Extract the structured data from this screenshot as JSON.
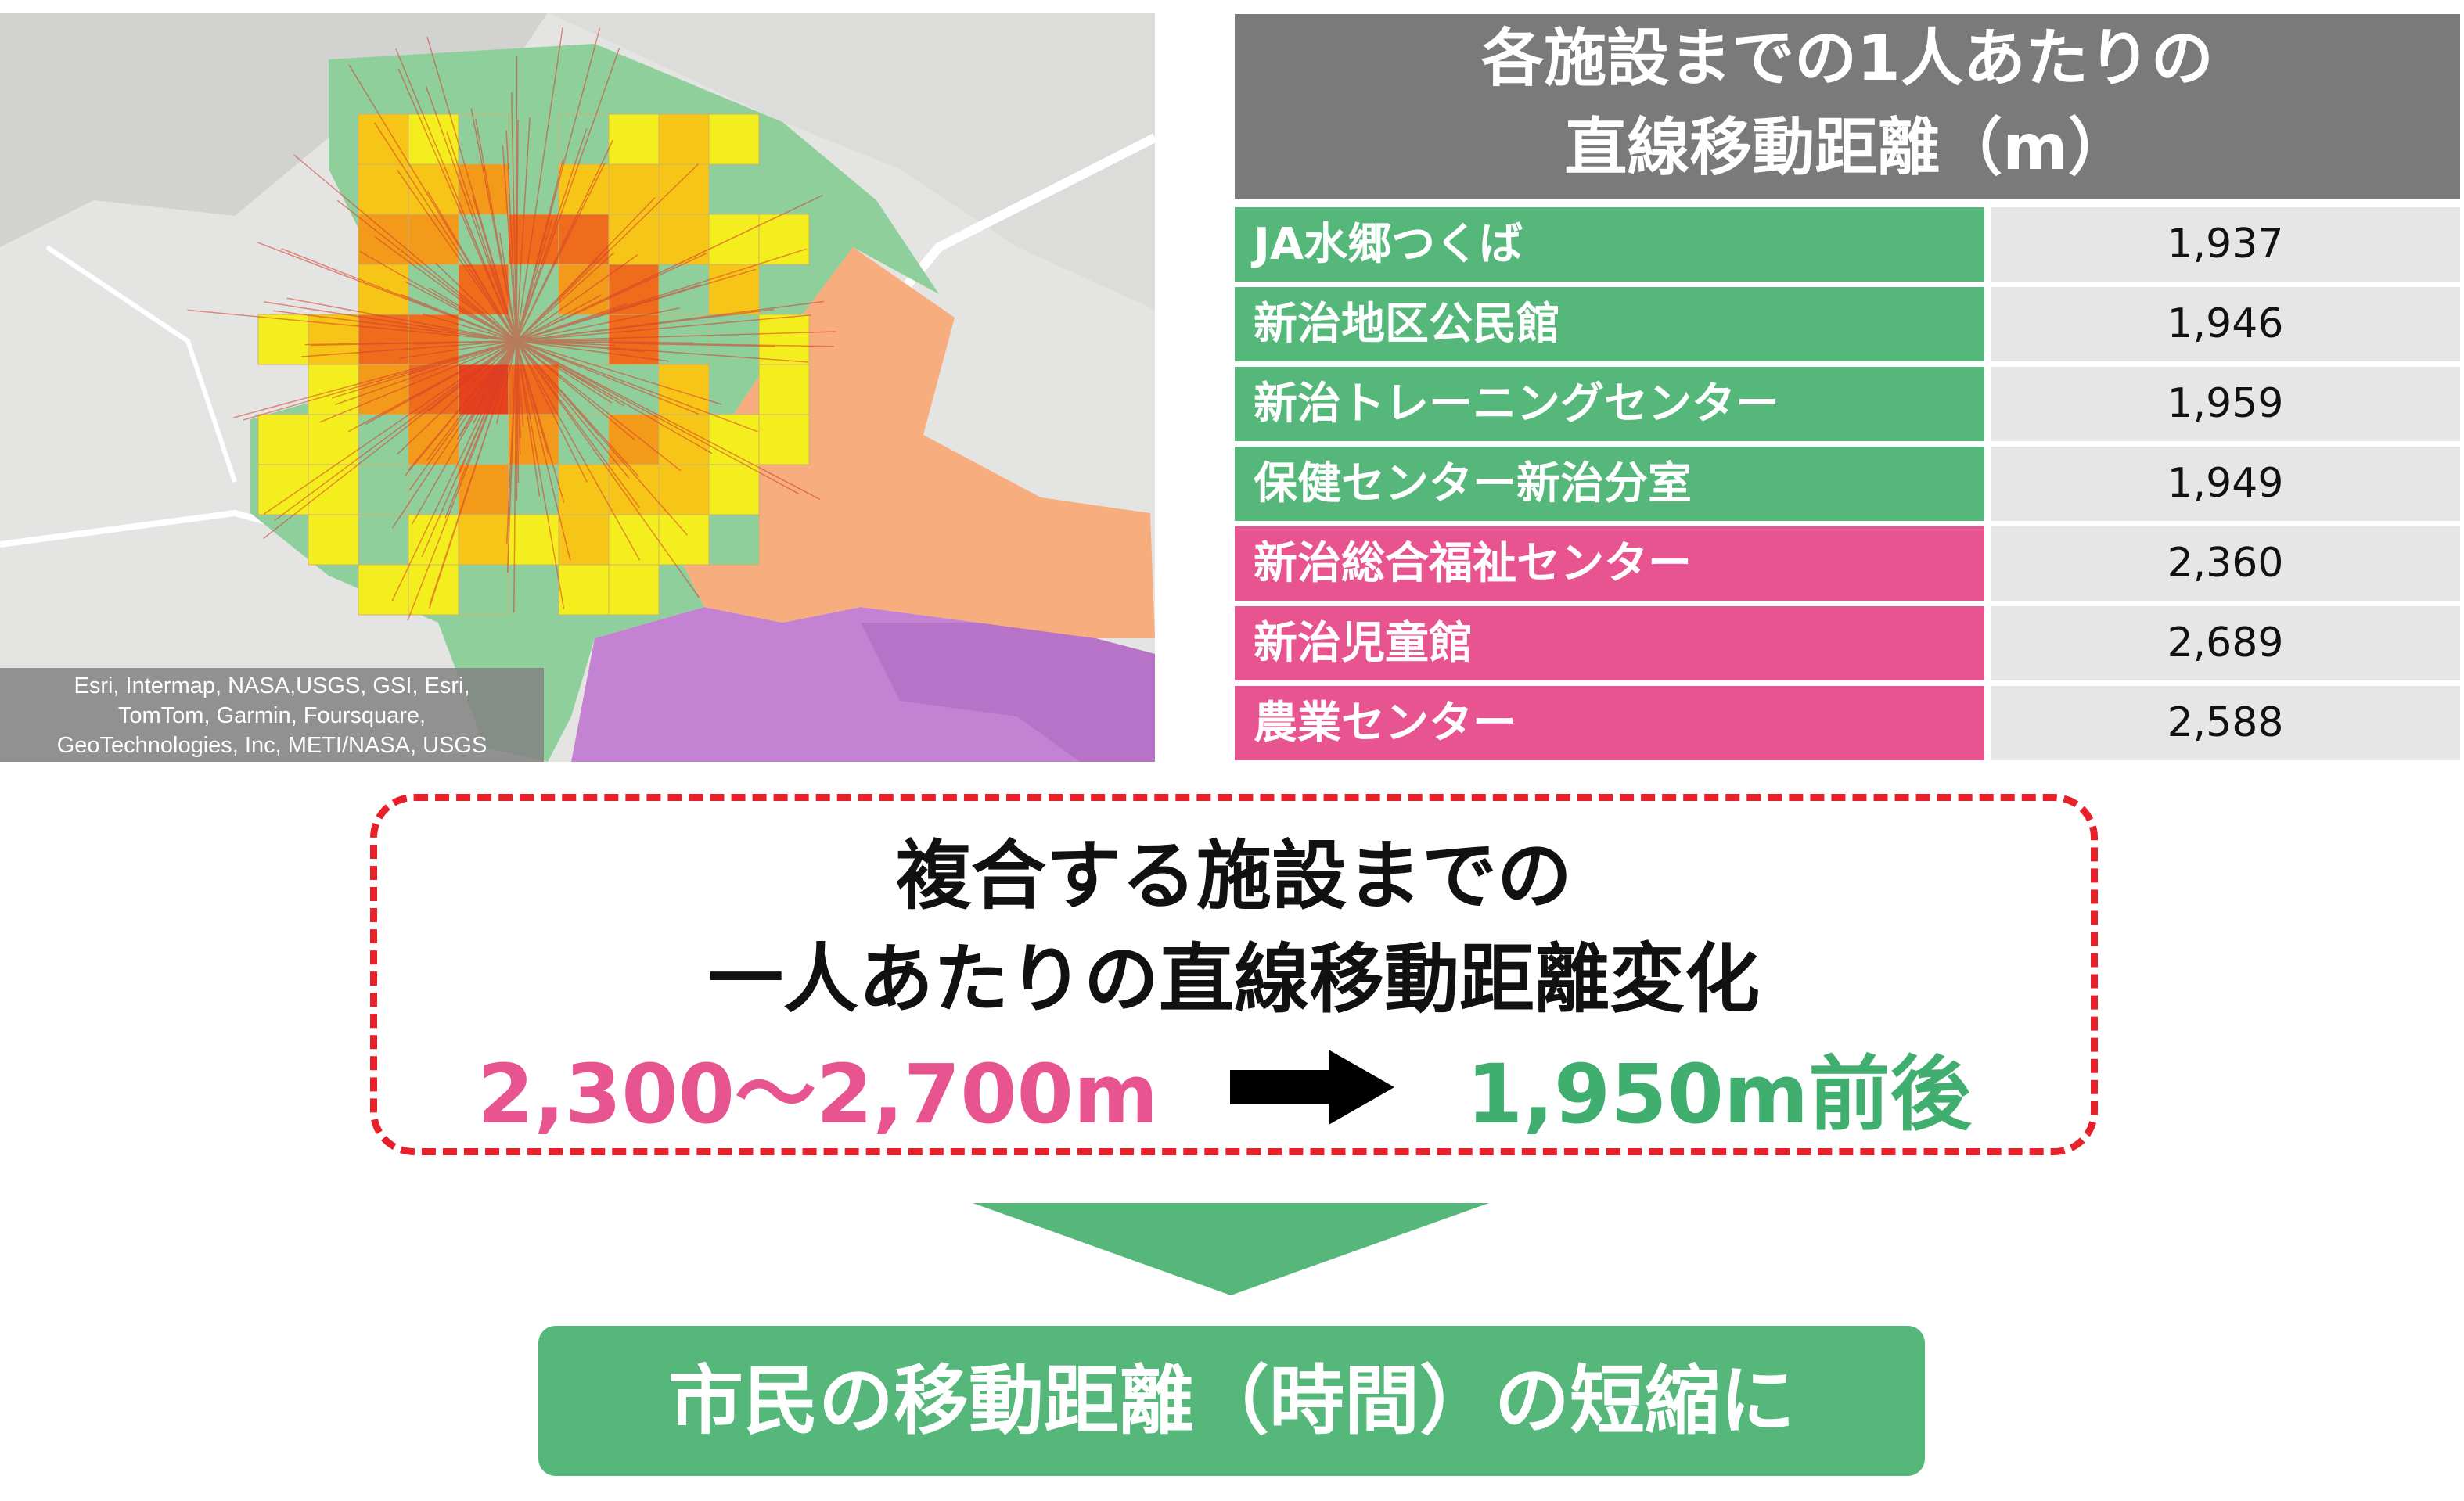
{
  "map": {
    "attribution": [
      "Esri, Intermap, NASA,USGS, GSI, Esri,",
      "TomTom, Garmin, Foursquare,",
      "GeoTechnologies, Inc, METI/NASA, USGS"
    ]
  },
  "table": {
    "header": [
      "各施設までの1人あたりの",
      "直線移動距離（m）"
    ],
    "rows": [
      {
        "label": "JA水郷つくば",
        "value": "1,937",
        "color": "#55b77a"
      },
      {
        "label": "新治地区公民館",
        "value": "1,946",
        "color": "#55b77a"
      },
      {
        "label": "新治トレーニングセンター",
        "value": "1,959",
        "color": "#55b77a"
      },
      {
        "label": "保健センター新治分室",
        "value": "1,949",
        "color": "#55b77a"
      },
      {
        "label": "新治総合福祉センター",
        "value": "2,360",
        "color": "#e8548f"
      },
      {
        "label": "新治児童館",
        "value": "2,689",
        "color": "#e8548f"
      },
      {
        "label": "農業センター",
        "value": "2,588",
        "color": "#e8548f"
      }
    ]
  },
  "callout": {
    "line1": "複合する施設までの",
    "line2": "一人あたりの直線移動距離変化",
    "from_value": "2,300～2,700m",
    "to_value": "1,950m前後"
  },
  "result": "市民の移動距離（時間）の短縮に",
  "colors": {
    "green": "#55b77a",
    "pink": "#e8548f",
    "dash_red": "#e8202a",
    "header_gray": "#7a7a7a"
  }
}
